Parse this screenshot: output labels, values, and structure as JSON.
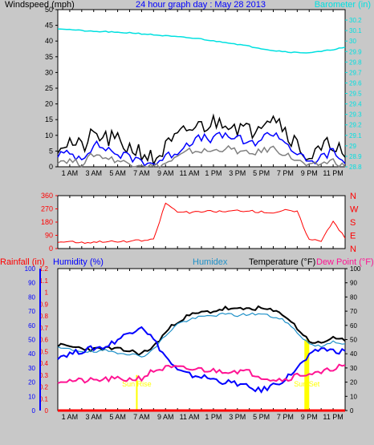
{
  "chart_data": [
    {
      "type": "line",
      "title": "24 hour graph day : May 28 2013",
      "ylabel": "Windspeed (mph)",
      "y2label": "Barometer (in)",
      "ylim": [
        0,
        50
      ],
      "y2lim": [
        28.8,
        30.3
      ],
      "yticks": [
        0,
        5,
        10,
        15,
        20,
        25,
        30,
        35,
        40,
        45,
        50
      ],
      "y2ticks": [
        "28.8",
        "28.9",
        "29",
        "29.1",
        "29.2",
        "29.3",
        "29.4",
        "29.5",
        "29.6",
        "29.7",
        "29.8",
        "29.9",
        "30",
        "30.1",
        "30.2"
      ],
      "xticks": [
        "1 AM",
        "3 AM",
        "5 AM",
        "7 AM",
        "9 AM",
        "11 AM",
        "1 PM",
        "3 PM",
        "5 PM",
        "7 PM",
        "9 PM",
        "11 PM"
      ],
      "x_hours": [
        0,
        1,
        2,
        3,
        4,
        5,
        6,
        7,
        8,
        9,
        10,
        11,
        12,
        13,
        14,
        15,
        16,
        17,
        18,
        19,
        20,
        21,
        22,
        23,
        24
      ],
      "series": [
        {
          "role": "gust",
          "values": [
            7,
            8,
            6,
            10,
            9,
            8,
            6,
            5,
            2,
            6,
            9,
            12,
            13,
            14,
            15,
            13,
            11,
            15,
            17,
            12,
            7,
            3,
            5,
            8,
            3
          ]
        },
        {
          "role": "average",
          "values": [
            4,
            4,
            3,
            7,
            6,
            4,
            3,
            2,
            1,
            3,
            5,
            8,
            9,
            9,
            10,
            9,
            7,
            9,
            11,
            8,
            4,
            1,
            3,
            5,
            1
          ]
        },
        {
          "role": "low",
          "values": [
            2,
            2,
            1,
            4,
            3,
            2,
            1,
            1,
            0,
            1,
            3,
            5,
            5,
            5,
            6,
            5,
            4,
            5,
            6,
            4,
            2,
            0,
            1,
            2,
            0
          ]
        },
        {
          "role": "barometer",
          "axis": "right",
          "values": [
            30.12,
            30.11,
            30.1,
            30.09,
            30.09,
            30.08,
            30.08,
            30.07,
            30.06,
            30.05,
            30.04,
            30.03,
            30.02,
            30.0,
            29.99,
            29.97,
            29.95,
            29.93,
            29.91,
            29.9,
            29.89,
            29.89,
            29.9,
            29.92,
            29.94
          ]
        }
      ],
      "colors": {
        "gust": "#000000",
        "average": "#0000ff",
        "low": "#808080",
        "barometer": "#00e0e0",
        "title": "#0000ff",
        "axis_right": "#00e0e0"
      }
    },
    {
      "type": "line",
      "ylim": [
        0,
        360
      ],
      "yticks": [
        0,
        90,
        180,
        270,
        360
      ],
      "yticklabels": [
        "0",
        "90",
        "180",
        "270",
        "360"
      ],
      "y2labels": [
        "N",
        "W",
        "S",
        "E",
        "N"
      ],
      "x_hours": [
        0,
        1,
        2,
        3,
        4,
        5,
        6,
        7,
        8,
        9,
        10,
        11,
        12,
        13,
        14,
        15,
        16,
        17,
        18,
        19,
        20,
        21,
        22,
        23,
        24
      ],
      "series": [
        {
          "role": "wind_direction",
          "values": [
            45,
            50,
            40,
            45,
            50,
            45,
            50,
            55,
            60,
            310,
            250,
            245,
            250,
            255,
            250,
            260,
            255,
            250,
            245,
            260,
            250,
            60,
            55,
            190,
            70
          ]
        }
      ],
      "colors": {
        "wind_direction": "#ff0000",
        "axis": "#ff0000"
      }
    },
    {
      "type": "line",
      "y_rain_label": "Rainfall (in)",
      "y_hum_label": "Humidity (%)",
      "humidex_label": "Humidex",
      "temp_label": "Temperature (°F)",
      "dew_label": "Dew Point (°F)",
      "rain_ticks": [
        "0",
        "0.1",
        "0.2",
        "0.3",
        "0.4",
        "0.5",
        "0.6",
        "0.7",
        "0.8",
        "0.9",
        "1",
        "1.1",
        "1.2"
      ],
      "hum_ticks": [
        0,
        10,
        20,
        30,
        40,
        50,
        60,
        70,
        80,
        90,
        100
      ],
      "temp_ticks": [
        0,
        10,
        20,
        30,
        40,
        50,
        60,
        70,
        80,
        90,
        100
      ],
      "ylim": [
        0,
        100
      ],
      "x_hours": [
        0,
        1,
        2,
        3,
        4,
        5,
        6,
        7,
        8,
        9,
        10,
        11,
        12,
        13,
        14,
        15,
        16,
        17,
        18,
        19,
        20,
        21,
        22,
        23,
        24
      ],
      "series": [
        {
          "role": "temperature",
          "values": [
            46,
            45,
            44,
            43,
            44,
            43,
            42,
            40,
            45,
            55,
            63,
            67,
            69,
            70,
            72,
            71,
            72,
            72,
            70,
            67,
            58,
            49,
            47,
            52,
            49
          ]
        },
        {
          "role": "humidex",
          "values": [
            44,
            43,
            42,
            41,
            42,
            41,
            40,
            38,
            43,
            53,
            61,
            64,
            66,
            67,
            68,
            67,
            68,
            68,
            66,
            63,
            55,
            47,
            45,
            49,
            47
          ]
        },
        {
          "role": "humidity",
          "values": [
            38,
            40,
            42,
            44,
            45,
            50,
            55,
            60,
            50,
            38,
            28,
            25,
            24,
            22,
            20,
            19,
            16,
            14,
            18,
            22,
            30,
            38,
            44,
            42,
            42
          ]
        },
        {
          "role": "dew_point",
          "values": [
            21,
            21,
            21,
            21,
            22,
            22,
            22,
            23,
            28,
            30,
            30,
            29,
            29,
            28,
            28,
            28,
            27,
            24,
            22,
            22,
            25,
            26,
            26,
            30,
            32
          ]
        },
        {
          "role": "rainfall",
          "values": [
            0,
            0,
            0,
            0,
            0,
            0,
            0,
            0,
            0,
            0,
            0,
            0,
            0,
            0,
            0,
            0,
            0,
            0,
            0,
            0,
            0,
            0,
            0,
            0,
            0
          ]
        }
      ],
      "events": [
        {
          "label": "Sun Rise",
          "hour": 6.6
        },
        {
          "label": "Sun Set",
          "hour": 20.8
        }
      ],
      "colors": {
        "temperature": "#000000",
        "humidex": "#1e90c8",
        "humidity": "#0000ff",
        "dew_point": "#ff1493",
        "rainfall": "#ff0000",
        "sun": "#ffff00"
      }
    }
  ]
}
